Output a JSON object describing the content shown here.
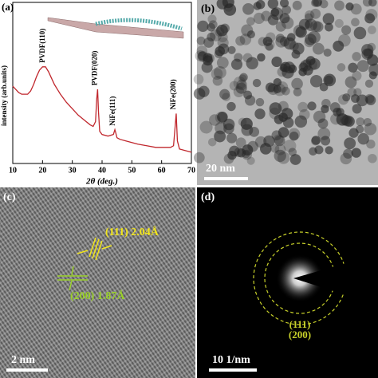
{
  "chart_data": {
    "type": "line",
    "panel_label": "(a)",
    "xlabel": "2θ (deg.)",
    "ylabel": "intensity (arb.units)",
    "xlim": [
      10,
      70
    ],
    "xticks": [
      10,
      20,
      30,
      40,
      50,
      60,
      70
    ],
    "ylim": [
      0,
      100
    ],
    "color": "#c0272d",
    "x": [
      10,
      11,
      12,
      13,
      14,
      15,
      16,
      17,
      18,
      19,
      20,
      21,
      22,
      23,
      24,
      25,
      26,
      28,
      30,
      32,
      34,
      36,
      37,
      37.8,
      38.2,
      38.5,
      38.8,
      39.2,
      40,
      42,
      43.8,
      44.3,
      44.6,
      45,
      46,
      48,
      50,
      52,
      55,
      58,
      61,
      63,
      64,
      64.5,
      64.9,
      65.3,
      66,
      68,
      70
    ],
    "values": [
      48,
      46,
      44,
      43,
      43,
      43,
      45,
      49,
      54,
      58,
      60,
      60,
      57,
      53,
      49,
      46,
      43,
      38,
      34,
      30,
      27,
      24,
      23,
      26,
      40,
      46,
      32,
      20,
      18,
      17,
      18,
      21,
      19,
      16,
      15,
      14,
      13,
      12,
      11,
      10,
      10,
      10,
      11,
      22,
      31,
      14,
      9,
      8,
      7
    ],
    "annotations": [
      {
        "text": "PVDF(110)",
        "x": 21
      },
      {
        "text": "PVDF(020)",
        "x": 38.5
      },
      {
        "text": "NiFe(111)",
        "x": 44.6
      },
      {
        "text": "NiFe(200)",
        "x": 64.9
      }
    ]
  },
  "panels": {
    "b": {
      "label": "(b)",
      "scale_bar": "20 nm"
    },
    "c": {
      "label": "(c)",
      "annotations": [
        "(111) 2.04Å",
        "(200) 1.87Å"
      ],
      "scale_bar": "2 nm"
    },
    "d": {
      "label": "(d)",
      "scale_bar": "10 1/nm",
      "rings": [
        "(111)",
        "(200)"
      ]
    }
  }
}
